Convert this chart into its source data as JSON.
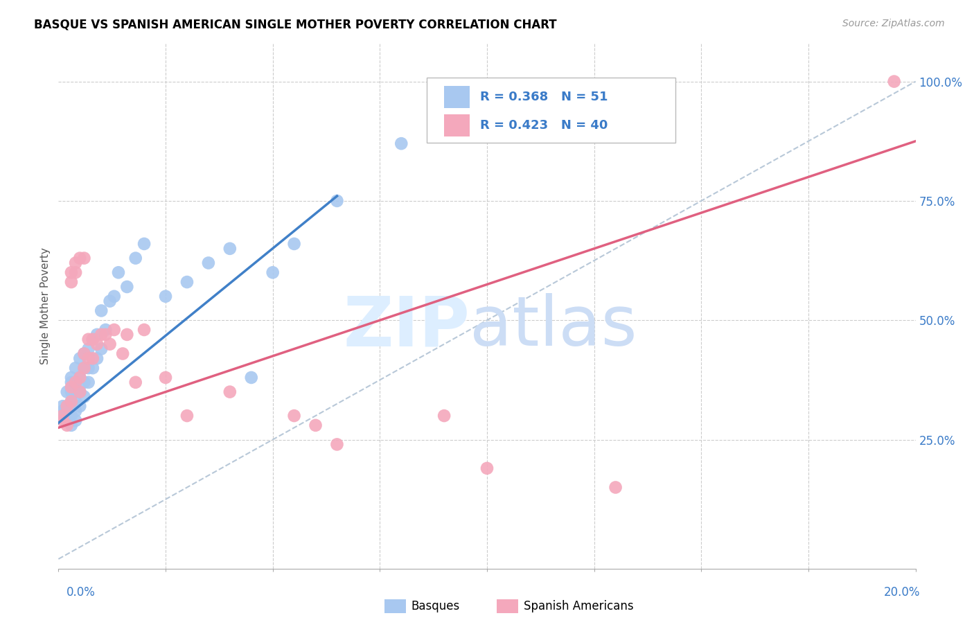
{
  "title": "BASQUE VS SPANISH AMERICAN SINGLE MOTHER POVERTY CORRELATION CHART",
  "source": "Source: ZipAtlas.com",
  "ylabel": "Single Mother Poverty",
  "yaxis_labels": [
    "25.0%",
    "50.0%",
    "75.0%",
    "100.0%"
  ],
  "yaxis_values": [
    0.25,
    0.5,
    0.75,
    1.0
  ],
  "xlim": [
    0.0,
    0.2
  ],
  "ylim": [
    -0.02,
    1.08
  ],
  "blue_R": 0.368,
  "blue_N": 51,
  "pink_R": 0.423,
  "pink_N": 40,
  "blue_color": "#A8C8F0",
  "pink_color": "#F4A8BC",
  "blue_line_color": "#4080C8",
  "pink_line_color": "#E06080",
  "diag_color": "#B8C8D8",
  "legend_text_color": "#3A7BC8",
  "blue_line_x0": 0.0,
  "blue_line_y0": 0.285,
  "blue_line_x1": 0.065,
  "blue_line_y1": 0.76,
  "pink_line_x0": 0.0,
  "pink_line_y0": 0.275,
  "pink_line_x1": 0.2,
  "pink_line_y1": 0.875,
  "blue_x": [
    0.001,
    0.001,
    0.001,
    0.002,
    0.002,
    0.002,
    0.003,
    0.003,
    0.003,
    0.003,
    0.003,
    0.003,
    0.004,
    0.004,
    0.004,
    0.004,
    0.004,
    0.004,
    0.005,
    0.005,
    0.005,
    0.005,
    0.006,
    0.006,
    0.006,
    0.006,
    0.007,
    0.007,
    0.007,
    0.008,
    0.008,
    0.009,
    0.009,
    0.01,
    0.01,
    0.011,
    0.012,
    0.013,
    0.014,
    0.016,
    0.018,
    0.02,
    0.025,
    0.03,
    0.035,
    0.04,
    0.045,
    0.05,
    0.055,
    0.065,
    0.08
  ],
  "blue_y": [
    0.3,
    0.31,
    0.32,
    0.29,
    0.32,
    0.35,
    0.28,
    0.3,
    0.33,
    0.35,
    0.37,
    0.38,
    0.29,
    0.31,
    0.33,
    0.35,
    0.37,
    0.4,
    0.32,
    0.35,
    0.38,
    0.42,
    0.34,
    0.37,
    0.4,
    0.43,
    0.37,
    0.4,
    0.44,
    0.4,
    0.46,
    0.42,
    0.47,
    0.44,
    0.52,
    0.48,
    0.54,
    0.55,
    0.6,
    0.57,
    0.63,
    0.66,
    0.55,
    0.58,
    0.62,
    0.65,
    0.38,
    0.6,
    0.66,
    0.75,
    0.87
  ],
  "pink_x": [
    0.001,
    0.001,
    0.002,
    0.002,
    0.003,
    0.003,
    0.003,
    0.003,
    0.004,
    0.004,
    0.004,
    0.005,
    0.005,
    0.005,
    0.006,
    0.006,
    0.006,
    0.007,
    0.007,
    0.008,
    0.008,
    0.009,
    0.01,
    0.011,
    0.012,
    0.013,
    0.015,
    0.016,
    0.018,
    0.02,
    0.025,
    0.03,
    0.04,
    0.055,
    0.06,
    0.065,
    0.09,
    0.1,
    0.13,
    0.195
  ],
  "pink_y": [
    0.29,
    0.3,
    0.28,
    0.32,
    0.58,
    0.6,
    0.33,
    0.36,
    0.6,
    0.62,
    0.37,
    0.35,
    0.38,
    0.63,
    0.4,
    0.43,
    0.63,
    0.42,
    0.46,
    0.42,
    0.46,
    0.45,
    0.47,
    0.47,
    0.45,
    0.48,
    0.43,
    0.47,
    0.37,
    0.48,
    0.38,
    0.3,
    0.35,
    0.3,
    0.28,
    0.24,
    0.3,
    0.19,
    0.15,
    1.0
  ],
  "gridline_y": [
    0.25,
    0.5,
    0.75,
    1.0
  ],
  "gridline_x": [
    0.025,
    0.05,
    0.075,
    0.1,
    0.125,
    0.15,
    0.175
  ]
}
